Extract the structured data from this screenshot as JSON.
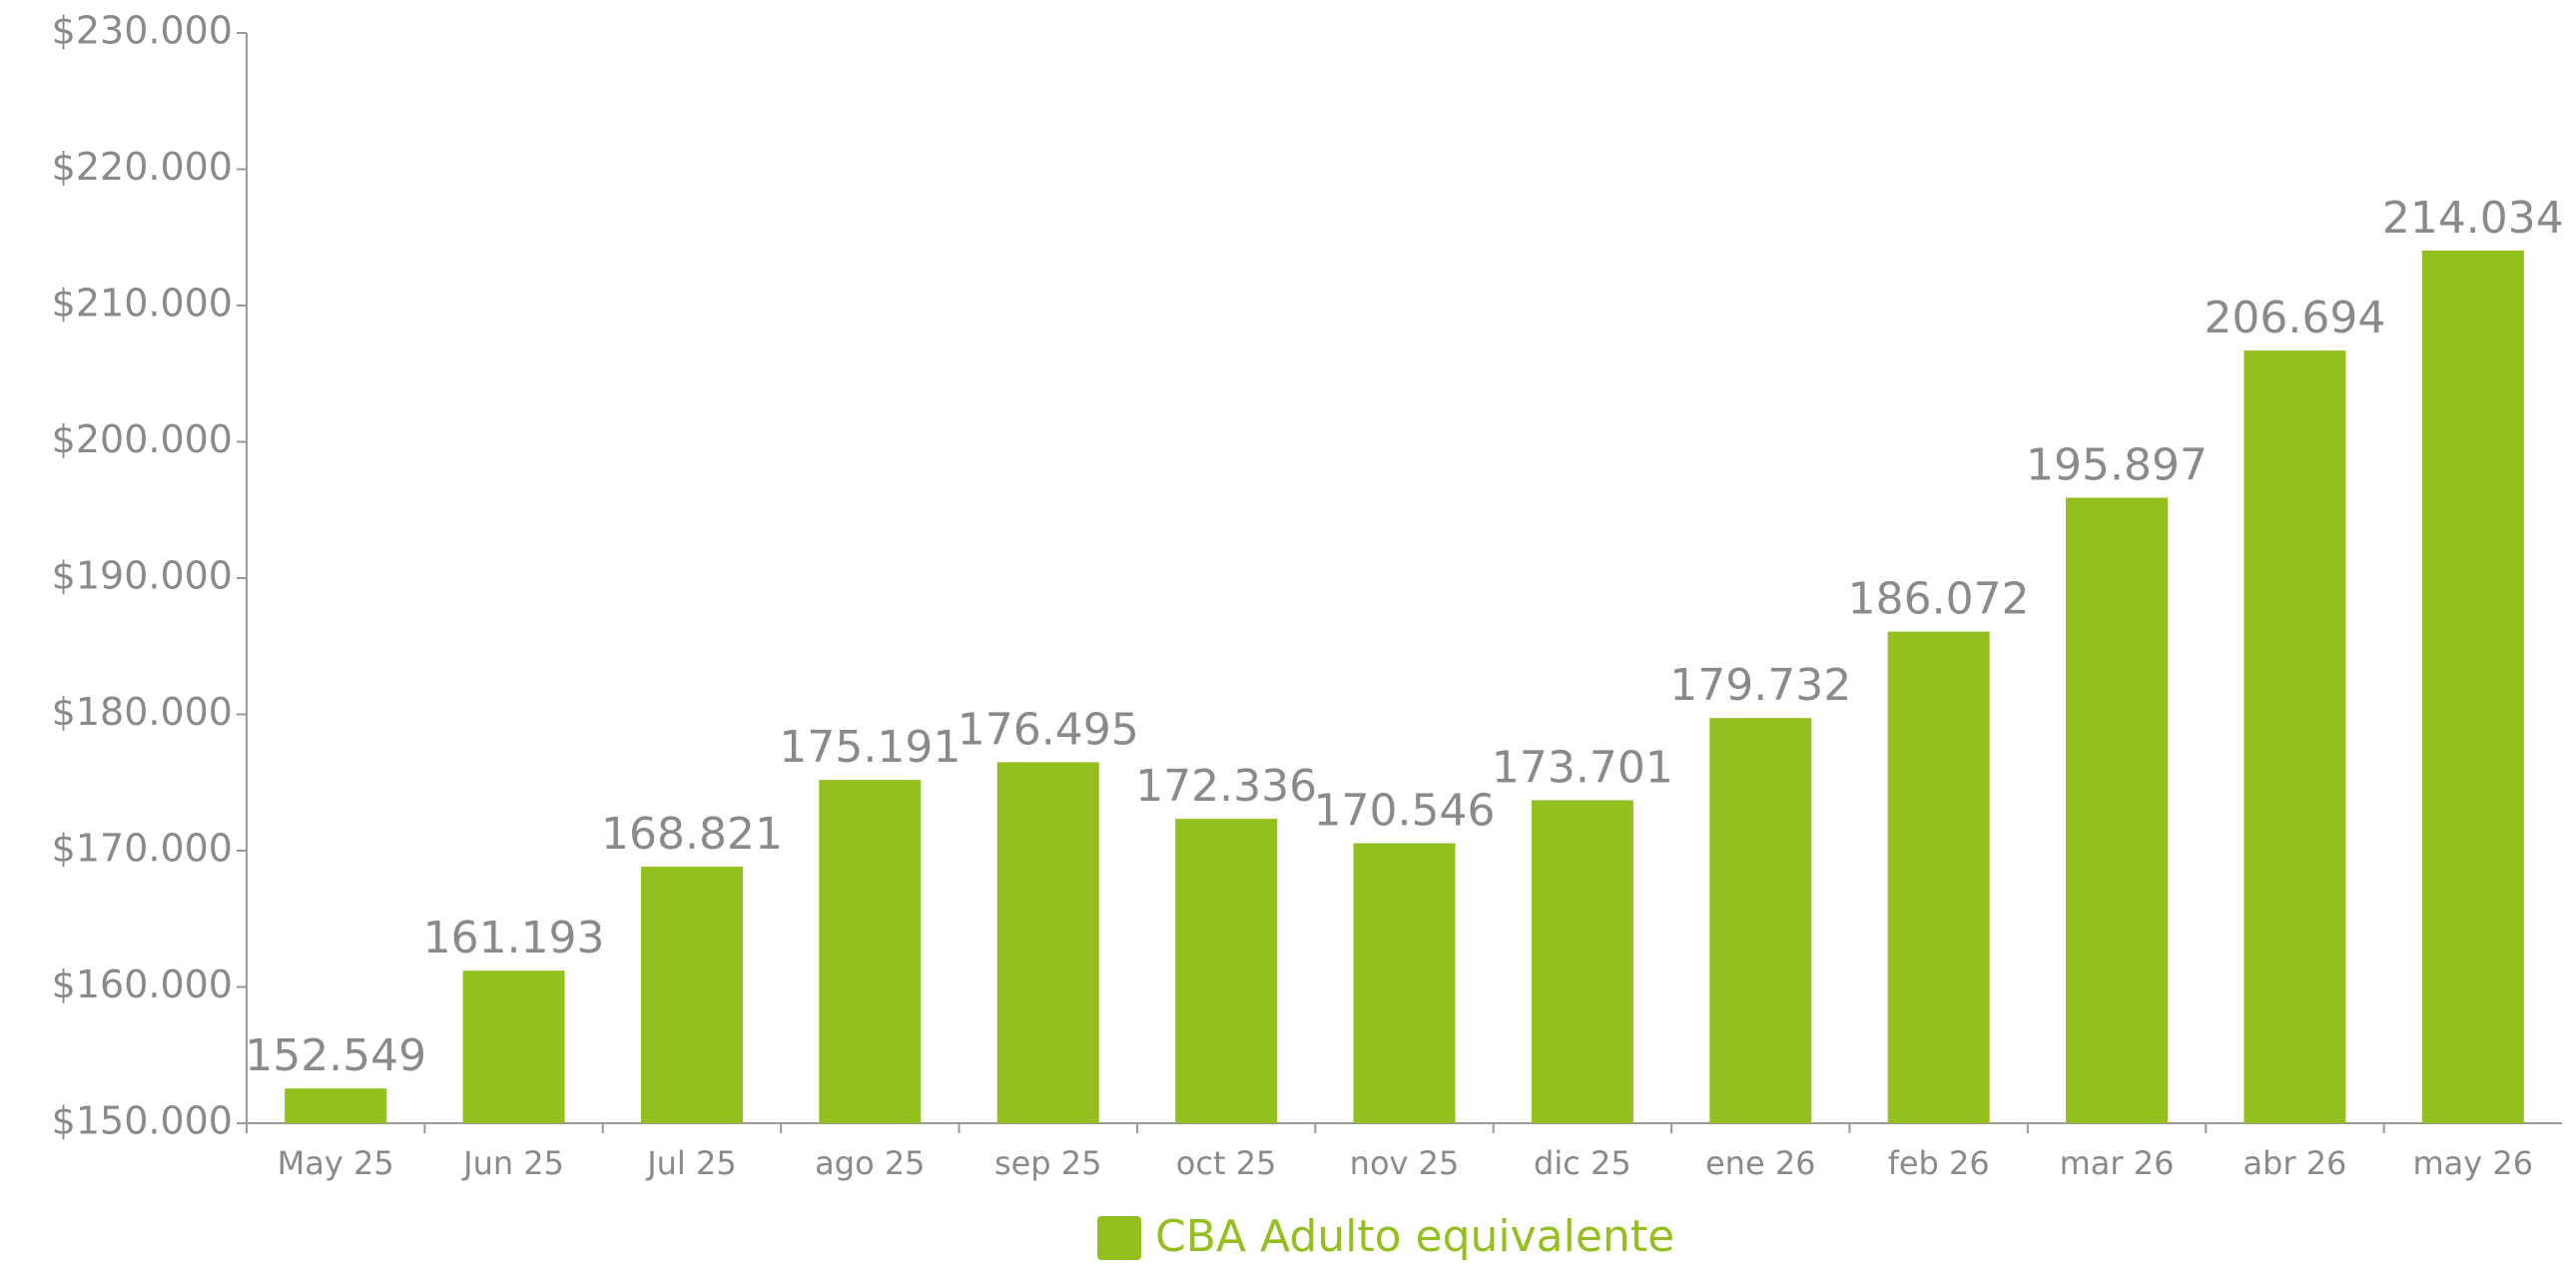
{
  "chart_data": {
    "type": "bar",
    "categories": [
      "May 25",
      "Jun 25",
      "Jul 25",
      "ago 25",
      "sep 25",
      "oct 25",
      "nov 25",
      "dic 25",
      "ene 26",
      "feb 26",
      "mar 26",
      "abr 26",
      "may 26"
    ],
    "series": [
      {
        "name": "CBA Adulto equivalente",
        "color": "#93c01f",
        "values": [
          152549,
          161193,
          168821,
          175191,
          176495,
          172336,
          170546,
          173701,
          179732,
          186072,
          195897,
          206694,
          214034
        ],
        "value_labels": [
          "152.549",
          "161.193",
          "168.821",
          "175.191",
          "176.495",
          "172.336",
          "170.546",
          "173.701",
          "179.732",
          "186.072",
          "195.897",
          "206.694",
          "214.034"
        ]
      }
    ],
    "ylim": [
      150000,
      230000
    ],
    "yticks": [
      {
        "value": 150000,
        "label": "$150.000"
      },
      {
        "value": 160000,
        "label": "$160.000"
      },
      {
        "value": 170000,
        "label": "$170.000"
      },
      {
        "value": 180000,
        "label": "$180.000"
      },
      {
        "value": 190000,
        "label": "$190.000"
      },
      {
        "value": 200000,
        "label": "$200.000"
      },
      {
        "value": 210000,
        "label": "$210.000"
      },
      {
        "value": 220000,
        "label": "$220.000"
      },
      {
        "value": 230000,
        "label": "$230.000"
      }
    ],
    "legend": "bottom"
  }
}
